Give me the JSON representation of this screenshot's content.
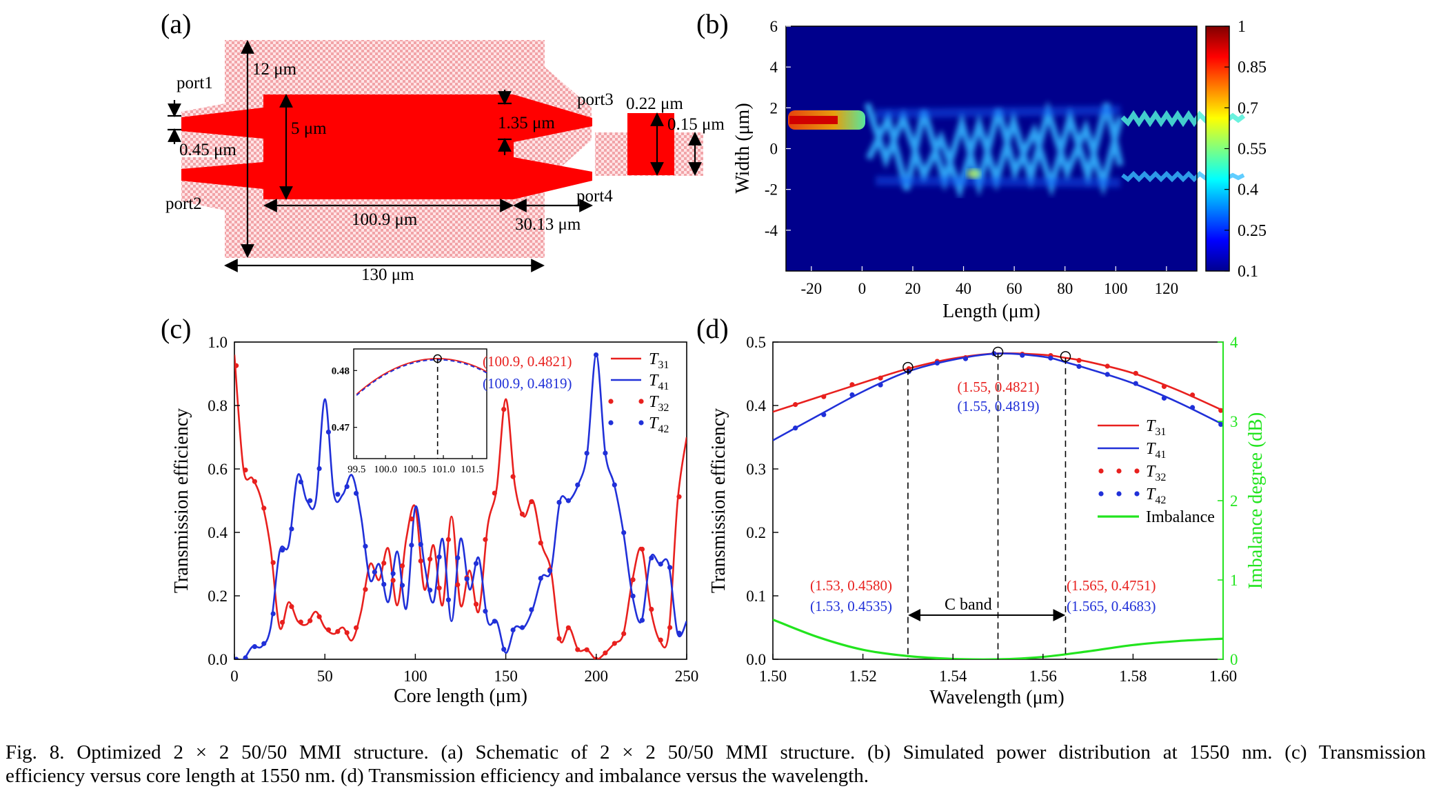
{
  "panels": {
    "a": {
      "label": "(a)",
      "dims": {
        "total_width": "12 μm",
        "core_width": "5 μm",
        "gap": "1.35 μm",
        "port_width": "0.45 μm",
        "core_length": "100.9 μm",
        "taper_length": "30.13 μm",
        "overall_length": "130 μm",
        "inset_w1": "0.22 μm",
        "inset_w2": "0.15 μm"
      },
      "ports": {
        "p1": "port1",
        "p2": "port2",
        "p3": "port3",
        "p4": "port4"
      }
    },
    "b": {
      "label": "(b)",
      "xlabel": "Length (μm)",
      "ylabel": "Width (μm)",
      "xticks": [
        "-20",
        "0",
        "20",
        "40",
        "60",
        "80",
        "100",
        "120"
      ],
      "yticks": [
        "6",
        "4",
        "2",
        "0",
        "-2",
        "-4"
      ],
      "cbar_ticks": [
        "1",
        "0.85",
        "0.7",
        "0.55",
        "0.4",
        "0.25",
        "0.1"
      ]
    },
    "c": {
      "label": "(c)",
      "xlabel": "Core length (μm)",
      "ylabel": "Transmission efficiency",
      "xticks": [
        "0",
        "50",
        "100",
        "150",
        "200",
        "250"
      ],
      "yticks": [
        "0.0",
        "0.2",
        "0.4",
        "0.6",
        "0.8",
        "1.0"
      ],
      "inset": {
        "xticks": [
          "99.5",
          "100.0",
          "100.5",
          "101.0",
          "101.5"
        ],
        "yticks": [
          "0.48",
          "0.47"
        ],
        "ann_red": "(100.9, 0.4821)",
        "ann_blue": "(100.9, 0.4819)"
      },
      "legend": [
        {
          "sym": "T",
          "sub": "31"
        },
        {
          "sym": "T",
          "sub": "41"
        },
        {
          "sym": "T",
          "sub": "32"
        },
        {
          "sym": "T",
          "sub": "42"
        }
      ]
    },
    "d": {
      "label": "(d)",
      "xlabel": "Wavelength (μm)",
      "ylabel": "Transmission efficiency",
      "y2label": "Imbalance degree (dB)",
      "xticks": [
        "1.50",
        "1.52",
        "1.54",
        "1.56",
        "1.58",
        "1.60"
      ],
      "yticks": [
        "0.0",
        "0.1",
        "0.2",
        "0.3",
        "0.4",
        "0.5"
      ],
      "y2ticks": [
        "0",
        "1",
        "2",
        "3",
        "4"
      ],
      "band_label": "C band",
      "ann": {
        "mid_red": "(1.55, 0.4821)",
        "mid_blue": "(1.55, 0.4819)",
        "left_red": "(1.53, 0.4580)",
        "left_blue": "(1.53, 0.4535)",
        "right_red": "(1.565, 0.4751)",
        "right_blue": "(1.565, 0.4683)"
      },
      "legend": [
        {
          "sym": "T",
          "sub": "31"
        },
        {
          "sym": "T",
          "sub": "41"
        },
        {
          "sym": "T",
          "sub": "32"
        },
        {
          "sym": "T",
          "sub": "42"
        },
        {
          "sym": "Imbalance",
          "sub": ""
        }
      ]
    }
  },
  "chart_data": [
    {
      "type": "line",
      "panel": "c",
      "title": "",
      "xlabel": "Core length (μm)",
      "ylabel": "Transmission efficiency",
      "xlim": [
        0,
        250
      ],
      "ylim": [
        0,
        1.0
      ],
      "series": [
        {
          "name": "T31",
          "color": "#e8201e",
          "x": [
            0,
            5,
            10,
            15,
            20,
            25,
            30,
            35,
            40,
            45,
            50,
            55,
            60,
            65,
            70,
            75,
            80,
            85,
            90,
            95,
            100,
            105,
            110,
            115,
            120,
            125,
            130,
            135,
            140,
            145,
            150,
            155,
            160,
            165,
            170,
            175,
            180,
            185,
            190,
            195,
            200,
            205,
            210,
            215,
            220,
            225,
            230,
            235,
            240,
            245,
            250
          ],
          "y": [
            0.96,
            0.6,
            0.57,
            0.5,
            0.35,
            0.1,
            0.18,
            0.12,
            0.11,
            0.15,
            0.1,
            0.08,
            0.1,
            0.06,
            0.15,
            0.3,
            0.25,
            0.35,
            0.17,
            0.38,
            0.48,
            0.22,
            0.36,
            0.17,
            0.45,
            0.17,
            0.28,
            0.15,
            0.42,
            0.54,
            0.82,
            0.55,
            0.45,
            0.5,
            0.36,
            0.28,
            0.06,
            0.1,
            0.03,
            0.03,
            0.0,
            0.02,
            0.05,
            0.08,
            0.25,
            0.35,
            0.16,
            0.06,
            0.08,
            0.5,
            0.7
          ]
        },
        {
          "name": "T41",
          "color": "#2030d8",
          "x": [
            0,
            5,
            10,
            15,
            20,
            25,
            30,
            35,
            40,
            45,
            50,
            55,
            60,
            65,
            70,
            75,
            80,
            85,
            90,
            95,
            100,
            105,
            110,
            115,
            120,
            125,
            130,
            135,
            140,
            145,
            150,
            155,
            160,
            165,
            170,
            175,
            180,
            185,
            190,
            195,
            200,
            205,
            210,
            215,
            220,
            225,
            230,
            235,
            240,
            245,
            250
          ],
          "y": [
            0.0,
            0.0,
            0.04,
            0.04,
            0.1,
            0.34,
            0.36,
            0.58,
            0.5,
            0.5,
            0.82,
            0.52,
            0.52,
            0.58,
            0.45,
            0.25,
            0.3,
            0.18,
            0.34,
            0.16,
            0.48,
            0.3,
            0.18,
            0.38,
            0.12,
            0.38,
            0.22,
            0.32,
            0.12,
            0.12,
            0.02,
            0.1,
            0.1,
            0.16,
            0.26,
            0.28,
            0.5,
            0.5,
            0.55,
            0.65,
            0.96,
            0.65,
            0.55,
            0.4,
            0.2,
            0.12,
            0.32,
            0.3,
            0.3,
            0.08,
            0.12
          ]
        }
      ],
      "markers": [
        {
          "name": "T32",
          "color": "#e8201e",
          "mirrors": "T31"
        },
        {
          "name": "T42",
          "color": "#2030d8",
          "mirrors": "T41"
        }
      ],
      "annotations": [
        "(100.9, 0.4821)",
        "(100.9, 0.4819)"
      ]
    },
    {
      "type": "line",
      "panel": "d",
      "title": "",
      "xlabel": "Wavelength (μm)",
      "ylabel": "Transmission efficiency",
      "y2label": "Imbalance degree (dB)",
      "xlim": [
        1.5,
        1.6
      ],
      "ylim": [
        0,
        0.5
      ],
      "y2lim": [
        0,
        4
      ],
      "series": [
        {
          "name": "T31",
          "color": "#e8201e",
          "axis": "left",
          "x": [
            1.5,
            1.51,
            1.52,
            1.53,
            1.54,
            1.55,
            1.56,
            1.565,
            1.57,
            1.58,
            1.59,
            1.6
          ],
          "y": [
            0.39,
            0.413,
            0.436,
            0.458,
            0.474,
            0.4821,
            0.48,
            0.4751,
            0.469,
            0.451,
            0.424,
            0.392
          ]
        },
        {
          "name": "T41",
          "color": "#2030d8",
          "axis": "left",
          "x": [
            1.5,
            1.51,
            1.52,
            1.53,
            1.54,
            1.55,
            1.56,
            1.565,
            1.57,
            1.58,
            1.59,
            1.6
          ],
          "y": [
            0.345,
            0.384,
            0.422,
            0.4535,
            0.472,
            0.4819,
            0.477,
            0.4683,
            0.458,
            0.435,
            0.405,
            0.37
          ]
        },
        {
          "name": "Imbalance",
          "color": "#22e41e",
          "axis": "right",
          "x": [
            1.5,
            1.51,
            1.52,
            1.53,
            1.54,
            1.55,
            1.56,
            1.57,
            1.58,
            1.59,
            1.6
          ],
          "y": [
            0.5,
            0.28,
            0.12,
            0.04,
            0.005,
            0.0,
            0.03,
            0.1,
            0.18,
            0.23,
            0.26
          ]
        }
      ],
      "markers": [
        {
          "name": "T32",
          "color": "#e8201e",
          "mirrors": "T31"
        },
        {
          "name": "T42",
          "color": "#2030d8",
          "mirrors": "T41"
        }
      ],
      "annotations": [
        "(1.55, 0.4821)",
        "(1.55, 0.4819)",
        "(1.53, 0.4580)",
        "(1.53, 0.4535)",
        "(1.565, 0.4751)",
        "(1.565, 0.4683)"
      ]
    }
  ],
  "caption": {
    "line1": "Fig. 8.  Optimized 2 × 2 50/50 MMI structure. (a) Schematic of 2 × 2 50/50 MMI structure. (b) Simulated power distribution at 1550 nm. (c) Transmission",
    "line2": "efficiency versus core length at 1550 nm. (d) Transmission efficiency and imbalance versus the wavelength."
  }
}
